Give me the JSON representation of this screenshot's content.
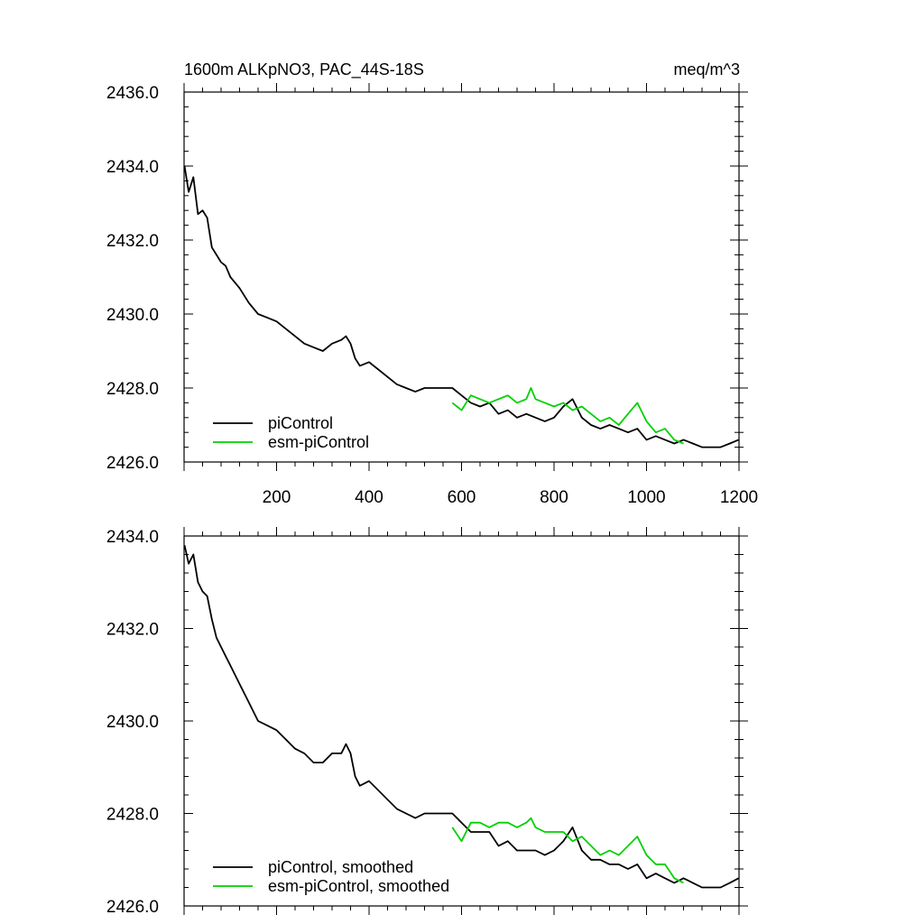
{
  "chart_data": [
    {
      "type": "line",
      "title": "1600m ALKpNO3, PAC_44S-18S",
      "units": "meq/m^3",
      "xlim": [
        0,
        1200
      ],
      "ylim": [
        2426.0,
        2436.0
      ],
      "x_ticks": [
        200,
        400,
        600,
        800,
        1000,
        1200
      ],
      "x_ticklabels": [
        "200",
        "400",
        "600",
        "800",
        "1000",
        "1200"
      ],
      "y_ticks": [
        2426.0,
        2428.0,
        2430.0,
        2432.0,
        2434.0,
        2436.0
      ],
      "y_ticklabels": [
        "2426.0",
        "2428.0",
        "2430.0",
        "2432.0",
        "2434.0",
        "2436.0"
      ],
      "grid": false,
      "legend_position": "bottom-left",
      "series": [
        {
          "name": "piControl",
          "color": "#000000",
          "x": [
            1,
            10,
            20,
            30,
            40,
            50,
            60,
            70,
            80,
            90,
            100,
            120,
            140,
            160,
            180,
            200,
            220,
            240,
            260,
            280,
            300,
            320,
            340,
            350,
            360,
            370,
            380,
            400,
            420,
            440,
            460,
            480,
            500,
            520,
            540,
            560,
            580,
            600,
            620,
            640,
            660,
            680,
            700,
            720,
            740,
            760,
            780,
            800,
            820,
            840,
            860,
            880,
            900,
            920,
            940,
            960,
            980,
            1000,
            1020,
            1040,
            1060,
            1080,
            1100,
            1120,
            1140,
            1160,
            1180,
            1199
          ],
          "y": [
            2434.0,
            2433.3,
            2433.7,
            2432.7,
            2432.8,
            2432.6,
            2431.8,
            2431.6,
            2431.4,
            2431.3,
            2431.0,
            2430.7,
            2430.3,
            2430.0,
            2429.9,
            2429.8,
            2429.6,
            2429.4,
            2429.2,
            2429.1,
            2429.0,
            2429.2,
            2429.3,
            2429.4,
            2429.2,
            2428.8,
            2428.6,
            2428.7,
            2428.5,
            2428.3,
            2428.1,
            2428.0,
            2427.9,
            2428.0,
            2428.0,
            2428.0,
            2428.0,
            2427.8,
            2427.6,
            2427.5,
            2427.6,
            2427.3,
            2427.4,
            2427.2,
            2427.3,
            2427.2,
            2427.1,
            2427.2,
            2427.5,
            2427.7,
            2427.2,
            2427.0,
            2426.9,
            2427.0,
            2426.9,
            2426.8,
            2426.9,
            2426.6,
            2426.7,
            2426.6,
            2426.5,
            2426.6,
            2426.5,
            2426.4,
            2426.4,
            2426.4,
            2426.5,
            2426.6
          ]
        },
        {
          "name": "esm-piControl",
          "color": "#00d000",
          "x": [
            580,
            600,
            620,
            640,
            660,
            680,
            700,
            720,
            740,
            750,
            760,
            780,
            800,
            820,
            840,
            860,
            880,
            900,
            920,
            940,
            960,
            980,
            1000,
            1020,
            1040,
            1060,
            1080
          ],
          "y": [
            2427.6,
            2427.4,
            2427.8,
            2427.7,
            2427.6,
            2427.7,
            2427.8,
            2427.6,
            2427.7,
            2428.0,
            2427.7,
            2427.6,
            2427.5,
            2427.6,
            2427.4,
            2427.5,
            2427.3,
            2427.1,
            2427.2,
            2427.0,
            2427.3,
            2427.6,
            2427.1,
            2426.8,
            2426.9,
            2426.6,
            2426.5
          ]
        }
      ]
    },
    {
      "type": "line",
      "title": "",
      "xlim": [
        0,
        1200
      ],
      "ylim": [
        2426.0,
        2434.0
      ],
      "y_ticks": [
        2426.0,
        2428.0,
        2430.0,
        2432.0,
        2434.0
      ],
      "y_ticklabels": [
        "2426.0",
        "2428.0",
        "2430.0",
        "2432.0",
        "2434.0"
      ],
      "grid": false,
      "legend_position": "bottom-left",
      "series": [
        {
          "name": "piControl, smoothed",
          "color": "#000000",
          "x": [
            1,
            10,
            20,
            30,
            40,
            50,
            60,
            70,
            80,
            90,
            100,
            120,
            140,
            160,
            180,
            200,
            220,
            240,
            260,
            280,
            300,
            320,
            340,
            350,
            360,
            370,
            380,
            400,
            420,
            440,
            460,
            480,
            500,
            520,
            540,
            560,
            580,
            600,
            620,
            640,
            660,
            680,
            700,
            720,
            740,
            760,
            780,
            800,
            820,
            840,
            860,
            880,
            900,
            920,
            940,
            960,
            980,
            1000,
            1020,
            1040,
            1060,
            1080,
            1100,
            1120,
            1140,
            1160,
            1180,
            1199
          ],
          "y": [
            2433.8,
            2433.4,
            2433.6,
            2433.0,
            2432.8,
            2432.7,
            2432.2,
            2431.8,
            2431.6,
            2431.4,
            2431.2,
            2430.8,
            2430.4,
            2430.0,
            2429.9,
            2429.8,
            2429.6,
            2429.4,
            2429.3,
            2429.1,
            2429.1,
            2429.3,
            2429.3,
            2429.5,
            2429.3,
            2428.8,
            2428.6,
            2428.7,
            2428.5,
            2428.3,
            2428.1,
            2428.0,
            2427.9,
            2428.0,
            2428.0,
            2428.0,
            2428.0,
            2427.8,
            2427.6,
            2427.6,
            2427.6,
            2427.3,
            2427.4,
            2427.2,
            2427.2,
            2427.2,
            2427.1,
            2427.2,
            2427.4,
            2427.7,
            2427.2,
            2427.0,
            2427.0,
            2426.9,
            2426.9,
            2426.8,
            2426.9,
            2426.6,
            2426.7,
            2426.6,
            2426.5,
            2426.6,
            2426.5,
            2426.4,
            2426.4,
            2426.4,
            2426.5,
            2426.6
          ]
        },
        {
          "name": "esm-piControl, smoothed",
          "color": "#00d000",
          "x": [
            580,
            600,
            620,
            640,
            660,
            680,
            700,
            720,
            740,
            750,
            760,
            780,
            800,
            820,
            840,
            860,
            880,
            900,
            920,
            940,
            960,
            980,
            1000,
            1020,
            1040,
            1060,
            1080
          ],
          "y": [
            2427.7,
            2427.4,
            2427.8,
            2427.8,
            2427.7,
            2427.8,
            2427.8,
            2427.7,
            2427.8,
            2427.9,
            2427.7,
            2427.6,
            2427.6,
            2427.6,
            2427.4,
            2427.5,
            2427.3,
            2427.1,
            2427.2,
            2427.1,
            2427.3,
            2427.5,
            2427.1,
            2426.9,
            2426.9,
            2426.6,
            2426.5
          ]
        }
      ]
    }
  ]
}
